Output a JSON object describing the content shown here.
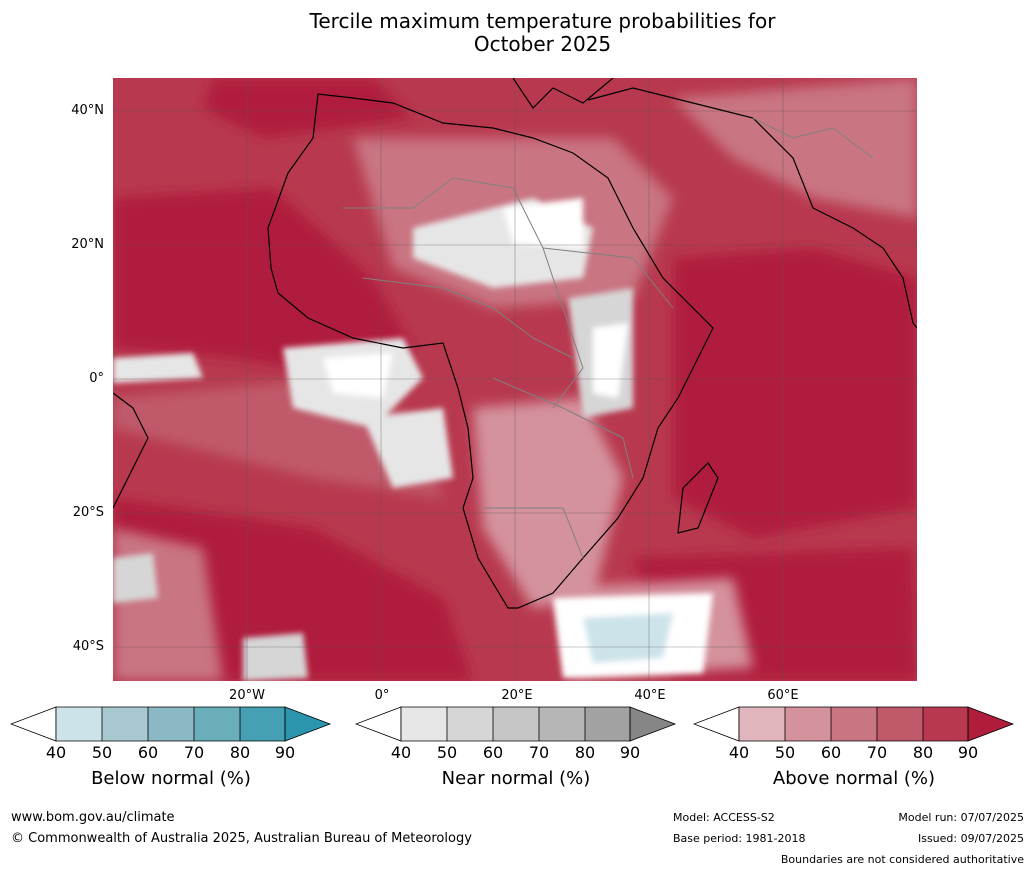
{
  "title_line1": "Tercile maximum temperature probabilities for",
  "title_line2": "October 2025",
  "lat_labels": [
    "40°N",
    "20°N",
    "0°",
    "20°S",
    "40°S"
  ],
  "lon_labels": [
    "20°W",
    "0°",
    "20°E",
    "40°E",
    "60°E"
  ],
  "colorbars": [
    {
      "label": "Below normal (%)",
      "ticks": [
        "40",
        "50",
        "60",
        "70",
        "80",
        "90"
      ],
      "colors": [
        "#ffffff",
        "#cce3ea",
        "#a8c9d0",
        "#8ab8c4",
        "#6aaeba",
        "#44a0b2",
        "#2b95ad"
      ]
    },
    {
      "label": "Near normal (%)",
      "ticks": [
        "40",
        "50",
        "60",
        "70",
        "80",
        "90"
      ],
      "colors": [
        "#ffffff",
        "#e6e6e6",
        "#d6d6d6",
        "#c6c6c6",
        "#b6b6b6",
        "#a2a2a2",
        "#868686"
      ]
    },
    {
      "label": "Above normal (%)",
      "ticks": [
        "40",
        "50",
        "60",
        "70",
        "80",
        "90"
      ],
      "colors": [
        "#ffffff",
        "#e0b5bc",
        "#d4929d",
        "#c97582",
        "#c05a6b",
        "#b8394f",
        "#b01c3c"
      ]
    }
  ],
  "footer": {
    "website": "www.bom.gov.au/climate",
    "copyright": "© Commonwealth of Australia 2025, Australian Bureau of Meteorology",
    "model": "Model: ACCESS-S2",
    "base_period": "Base period: 1981-2018",
    "model_run": "Model run: 07/07/2025",
    "issued": "Issued: 09/07/2025",
    "disclaimer": "Boundaries are not considered authoritative"
  }
}
